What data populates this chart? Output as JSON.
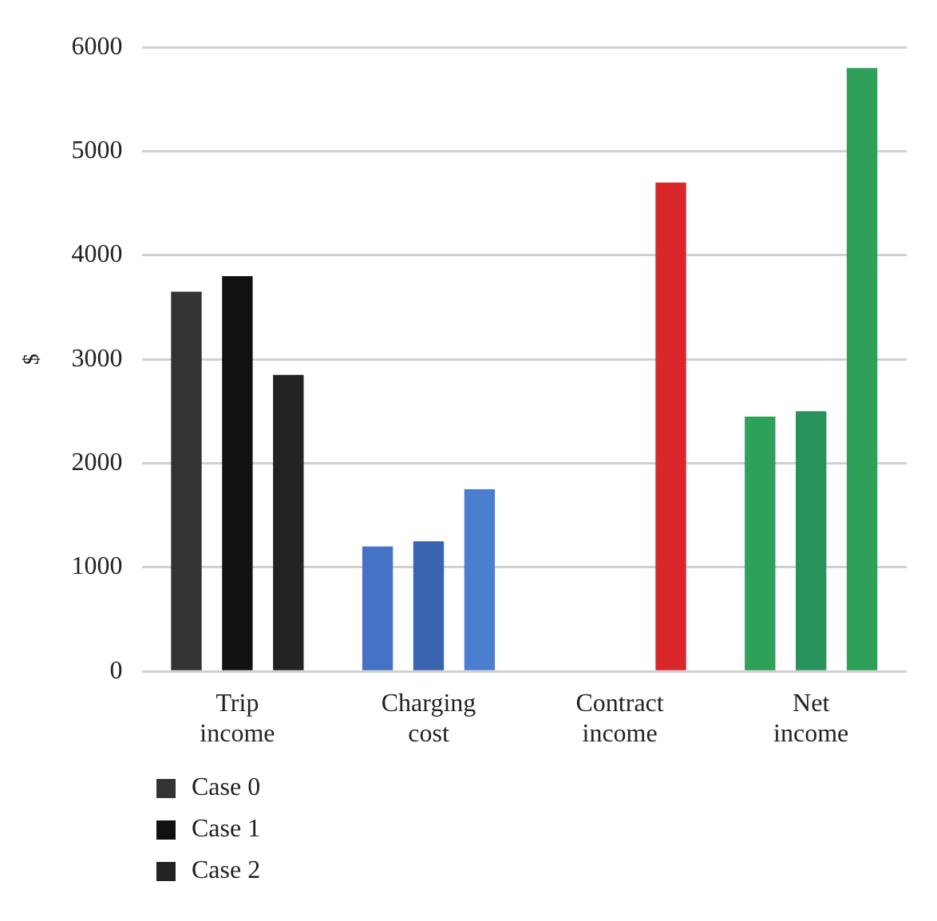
{
  "chart_data": {
    "type": "bar",
    "ylabel": "$",
    "categories": [
      "Trip income",
      "Charging cost",
      "Contract income",
      "Net income"
    ],
    "series": [
      {
        "name": "Case 0",
        "color": "#333333",
        "colors": [
          "#333333",
          "#4472c4",
          "#d9262b",
          "#2ea05a"
        ],
        "values": [
          3650,
          1200,
          0,
          2450
        ]
      },
      {
        "name": "Case 1",
        "color": "#111111",
        "colors": [
          "#111111",
          "#3a64b0",
          "#c0282d",
          "#27925a"
        ],
        "values": [
          3800,
          1250,
          0,
          2500
        ]
      },
      {
        "name": "Case 2",
        "color": "#222222",
        "colors": [
          "#222222",
          "#4a7fd0",
          "#d9262b",
          "#2ea05a"
        ],
        "values": [
          2850,
          1750,
          4700,
          5800
        ]
      }
    ],
    "ylim": [
      0,
      6000
    ],
    "yticks": [
      0,
      1000,
      2000,
      3000,
      4000,
      5000,
      6000
    ],
    "grid": "y",
    "legend": "bottom left"
  }
}
